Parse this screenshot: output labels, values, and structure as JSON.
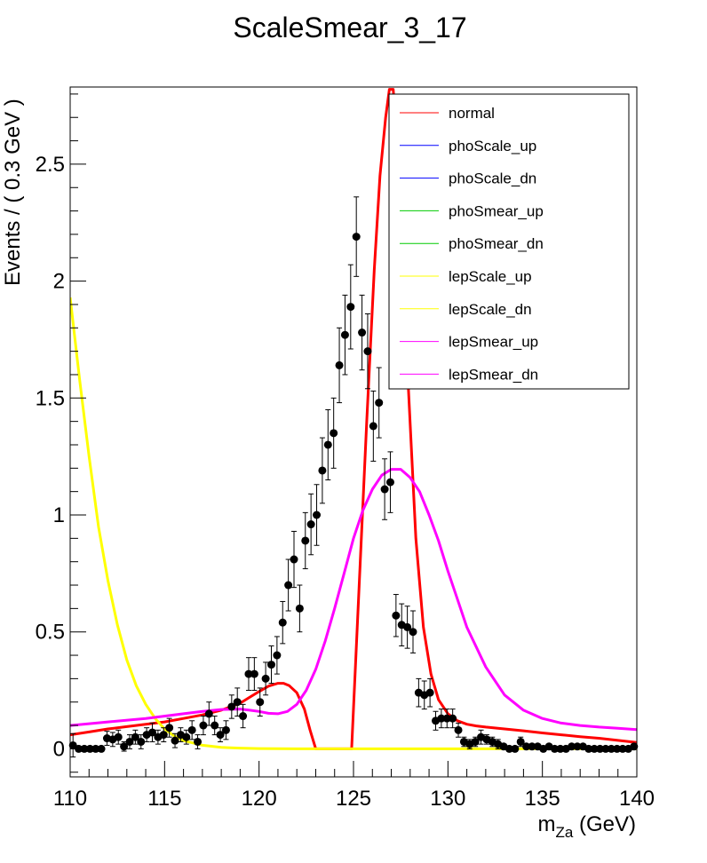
{
  "chart_data": {
    "type": "line",
    "title": "ScaleSmear_3_17",
    "ylabel": "Events / ( 0.3 GeV )",
    "xlabel_main": "m",
    "xlabel_sub": "Za",
    "xlabel_unit": " (GeV)",
    "xlim": [
      110,
      140
    ],
    "ylim": [
      -0.12,
      2.83
    ],
    "x_ticks": [
      110,
      115,
      120,
      125,
      130,
      135,
      140
    ],
    "x_tick_labels": [
      "110",
      "115",
      "120",
      "125",
      "130",
      "135",
      "140"
    ],
    "y_ticks": [
      0,
      0.5,
      1,
      1.5,
      2,
      2.5
    ],
    "y_tick_labels": [
      "0",
      "0.5",
      "1",
      "1.5",
      "2",
      "2.5"
    ],
    "legend_position": "top-right",
    "series": [
      {
        "name": "normal",
        "color": "#ff0000",
        "x": [
          110,
          111,
          112,
          113,
          114,
          115,
          116,
          117,
          118,
          119,
          119.5,
          120,
          120.5,
          121,
          121.3,
          121.6,
          122,
          122.4,
          122.7,
          123,
          124.9,
          125.3,
          125.7,
          126.1,
          126.4,
          126.7,
          126.9,
          127.1,
          127.5,
          127.9,
          128.3,
          128.7,
          129.1,
          129.5,
          130,
          130.5,
          131,
          131.5,
          132,
          133,
          134,
          135,
          136,
          137,
          138,
          139,
          140
        ],
        "y": [
          0.06,
          0.072,
          0.085,
          0.095,
          0.105,
          0.115,
          0.13,
          0.145,
          0.165,
          0.195,
          0.22,
          0.245,
          0.268,
          0.28,
          0.28,
          0.27,
          0.24,
          0.17,
          0.08,
          0.0,
          0.0,
          0.7,
          1.4,
          2.05,
          2.45,
          2.7,
          2.82,
          2.82,
          2.4,
          1.55,
          0.9,
          0.52,
          0.32,
          0.21,
          0.15,
          0.12,
          0.105,
          0.098,
          0.093,
          0.085,
          0.077,
          0.068,
          0.06,
          0.052,
          0.045,
          0.036,
          0.027
        ]
      },
      {
        "name": "phoScale_up",
        "color": "#0000ff",
        "x": [],
        "y": []
      },
      {
        "name": "phoScale_dn",
        "color": "#0000ff",
        "x": [],
        "y": []
      },
      {
        "name": "phoSmear_up",
        "color": "#00cc00",
        "x": [],
        "y": []
      },
      {
        "name": "phoSmear_dn",
        "color": "#00cc00",
        "x": [],
        "y": []
      },
      {
        "name": "lepScale_up",
        "color": "#ffff00",
        "x": [
          110,
          110.5,
          111,
          111.5,
          112,
          112.5,
          113,
          113.5,
          114,
          114.5,
          115,
          115.5,
          116,
          117,
          118,
          119,
          120,
          122,
          125,
          130,
          135,
          140
        ],
        "y": [
          1.93,
          1.58,
          1.25,
          0.95,
          0.72,
          0.53,
          0.38,
          0.27,
          0.19,
          0.13,
          0.085,
          0.055,
          0.035,
          0.015,
          0.006,
          0.003,
          0.001,
          0.0,
          0.0,
          0.0,
          0.0,
          0.0
        ]
      },
      {
        "name": "lepScale_dn",
        "color": "#ffff00",
        "x": [],
        "y": []
      },
      {
        "name": "lepSmear_up",
        "color": "#ff00ff",
        "x": [
          110,
          112,
          114,
          116,
          117,
          118,
          119,
          119.5,
          120,
          120.5,
          121,
          121.5,
          122,
          122.5,
          123,
          123.5,
          124,
          124.5,
          125,
          125.5,
          126,
          126.5,
          127,
          127.5,
          128,
          128.5,
          129,
          129.5,
          130,
          130.5,
          131,
          132,
          133,
          134,
          135,
          136,
          137,
          138,
          139,
          140
        ],
        "y": [
          0.1,
          0.115,
          0.13,
          0.15,
          0.16,
          0.168,
          0.17,
          0.165,
          0.16,
          0.152,
          0.15,
          0.16,
          0.19,
          0.25,
          0.34,
          0.46,
          0.6,
          0.75,
          0.9,
          1.02,
          1.11,
          1.17,
          1.195,
          1.195,
          1.16,
          1.1,
          1.0,
          0.89,
          0.76,
          0.64,
          0.52,
          0.35,
          0.23,
          0.165,
          0.13,
          0.11,
          0.1,
          0.093,
          0.088,
          0.082
        ]
      },
      {
        "name": "lepSmear_dn",
        "color": "#ff00ff",
        "x": [],
        "y": []
      }
    ],
    "data_points": {
      "x": [
        110.15,
        110.45,
        110.75,
        111.05,
        111.35,
        111.65,
        111.95,
        112.25,
        112.55,
        112.85,
        113.15,
        113.45,
        113.75,
        114.05,
        114.35,
        114.65,
        114.95,
        115.25,
        115.55,
        115.85,
        116.15,
        116.45,
        116.75,
        117.05,
        117.35,
        117.65,
        117.95,
        118.25,
        118.55,
        118.85,
        119.15,
        119.45,
        119.75,
        120.05,
        120.35,
        120.65,
        120.95,
        121.25,
        121.55,
        121.85,
        122.15,
        122.45,
        122.75,
        123.05,
        123.35,
        123.65,
        123.95,
        124.25,
        124.55,
        124.85,
        125.15,
        125.45,
        125.75,
        126.05,
        126.35,
        126.65,
        126.95,
        127.25,
        127.55,
        127.85,
        128.15,
        128.45,
        128.75,
        129.05,
        129.35,
        129.65,
        129.95,
        130.25,
        130.55,
        130.85,
        131.15,
        131.45,
        131.75,
        132.05,
        132.35,
        132.65,
        132.95,
        133.25,
        133.55,
        133.85,
        134.15,
        134.45,
        134.75,
        135.05,
        135.35,
        135.65,
        135.95,
        136.25,
        136.55,
        136.85,
        137.15,
        137.45,
        137.75,
        138.05,
        138.35,
        138.65,
        138.95,
        139.25,
        139.55,
        139.85
      ],
      "y": [
        0.015,
        0.0,
        0.0,
        0.0,
        0.0,
        0.0,
        0.045,
        0.04,
        0.05,
        0.01,
        0.03,
        0.05,
        0.03,
        0.06,
        0.07,
        0.05,
        0.06,
        0.09,
        0.035,
        0.06,
        0.05,
        0.08,
        0.03,
        0.1,
        0.15,
        0.1,
        0.06,
        0.08,
        0.18,
        0.2,
        0.14,
        0.32,
        0.32,
        0.2,
        0.3,
        0.36,
        0.4,
        0.54,
        0.7,
        0.81,
        0.6,
        0.89,
        0.96,
        1.0,
        1.19,
        1.3,
        1.35,
        1.64,
        1.77,
        1.89,
        2.19,
        1.78,
        1.7,
        1.38,
        1.48,
        1.11,
        1.14,
        0.57,
        0.53,
        0.52,
        0.5,
        0.24,
        0.23,
        0.24,
        0.12,
        0.13,
        0.13,
        0.13,
        0.08,
        0.03,
        0.02,
        0.03,
        0.05,
        0.04,
        0.03,
        0.02,
        0.01,
        0.0,
        0.0,
        0.03,
        0.01,
        0.01,
        0.01,
        0.0,
        0.01,
        0.0,
        0.0,
        0.0,
        0.01,
        0.01,
        0.01,
        0.0,
        0.0,
        0.0,
        0.0,
        0.0,
        0.0,
        0.0,
        0.0,
        0.01
      ],
      "err": [
        0.05,
        0.0,
        0.0,
        0.0,
        0.0,
        0.0,
        0.03,
        0.03,
        0.03,
        0.02,
        0.03,
        0.03,
        0.03,
        0.03,
        0.04,
        0.03,
        0.03,
        0.04,
        0.03,
        0.03,
        0.03,
        0.04,
        0.03,
        0.04,
        0.05,
        0.04,
        0.03,
        0.04,
        0.05,
        0.06,
        0.05,
        0.07,
        0.07,
        0.06,
        0.07,
        0.08,
        0.08,
        0.09,
        0.11,
        0.12,
        0.1,
        0.12,
        0.13,
        0.13,
        0.14,
        0.15,
        0.15,
        0.16,
        0.17,
        0.18,
        0.17,
        0.16,
        0.16,
        0.15,
        0.15,
        0.13,
        0.13,
        0.09,
        0.09,
        0.09,
        0.09,
        0.06,
        0.06,
        0.06,
        0.04,
        0.04,
        0.04,
        0.04,
        0.03,
        0.02,
        0.02,
        0.02,
        0.03,
        0.02,
        0.02,
        0.02,
        0.01,
        0.0,
        0.0,
        0.02,
        0.01,
        0.01,
        0.01,
        0.0,
        0.01,
        0.0,
        0.0,
        0.0,
        0.01,
        0.01,
        0.01,
        0.0,
        0.0,
        0.0,
        0.0,
        0.0,
        0.0,
        0.0,
        0.0,
        0.01
      ],
      "color": "#000000"
    }
  }
}
